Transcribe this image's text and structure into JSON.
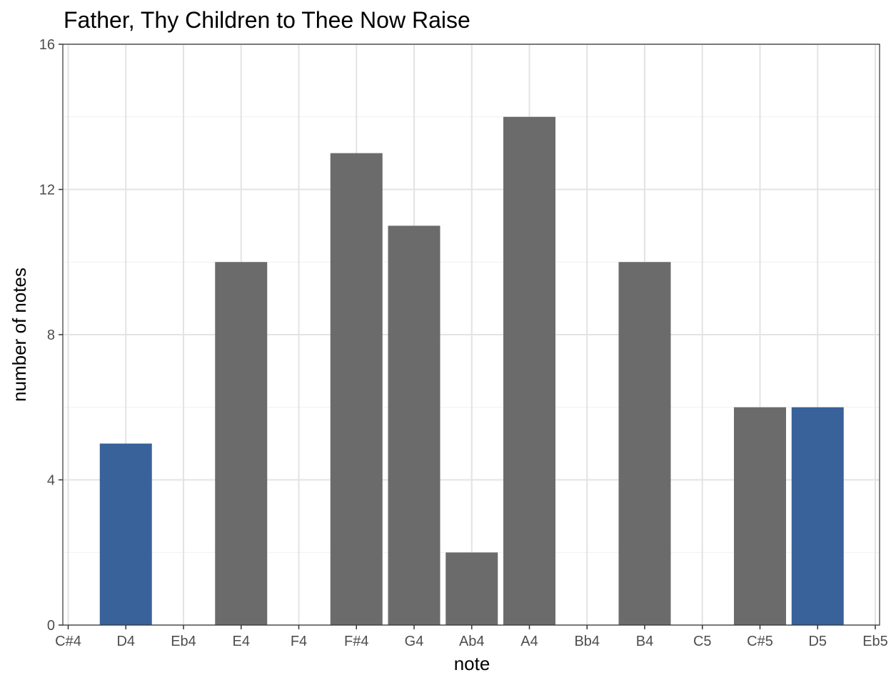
{
  "chart_data": {
    "type": "bar",
    "title": "Father, Thy Children to Thee Now Raise",
    "xlabel": "note",
    "ylabel": "number of notes",
    "categories": [
      "C#4",
      "D4",
      "Eb4",
      "E4",
      "F4",
      "F#4",
      "G4",
      "Ab4",
      "A4",
      "Bb4",
      "B4",
      "C5",
      "C#5",
      "D5",
      "Eb5"
    ],
    "values": [
      0,
      5,
      0,
      10,
      0,
      13,
      11,
      2,
      14,
      0,
      10,
      0,
      6,
      6,
      0
    ],
    "highlighted": [
      "D4",
      "D5"
    ],
    "ylim": [
      0,
      16
    ],
    "yticks": [
      0,
      4,
      8,
      12,
      16
    ],
    "grid": true,
    "legend": "none",
    "colors": {
      "bar": "#6b6b6b",
      "highlight": "#386299",
      "grid_major": "#e3e3e3",
      "grid_minor": "#f0f0f0",
      "panel_border": "#333333"
    }
  }
}
